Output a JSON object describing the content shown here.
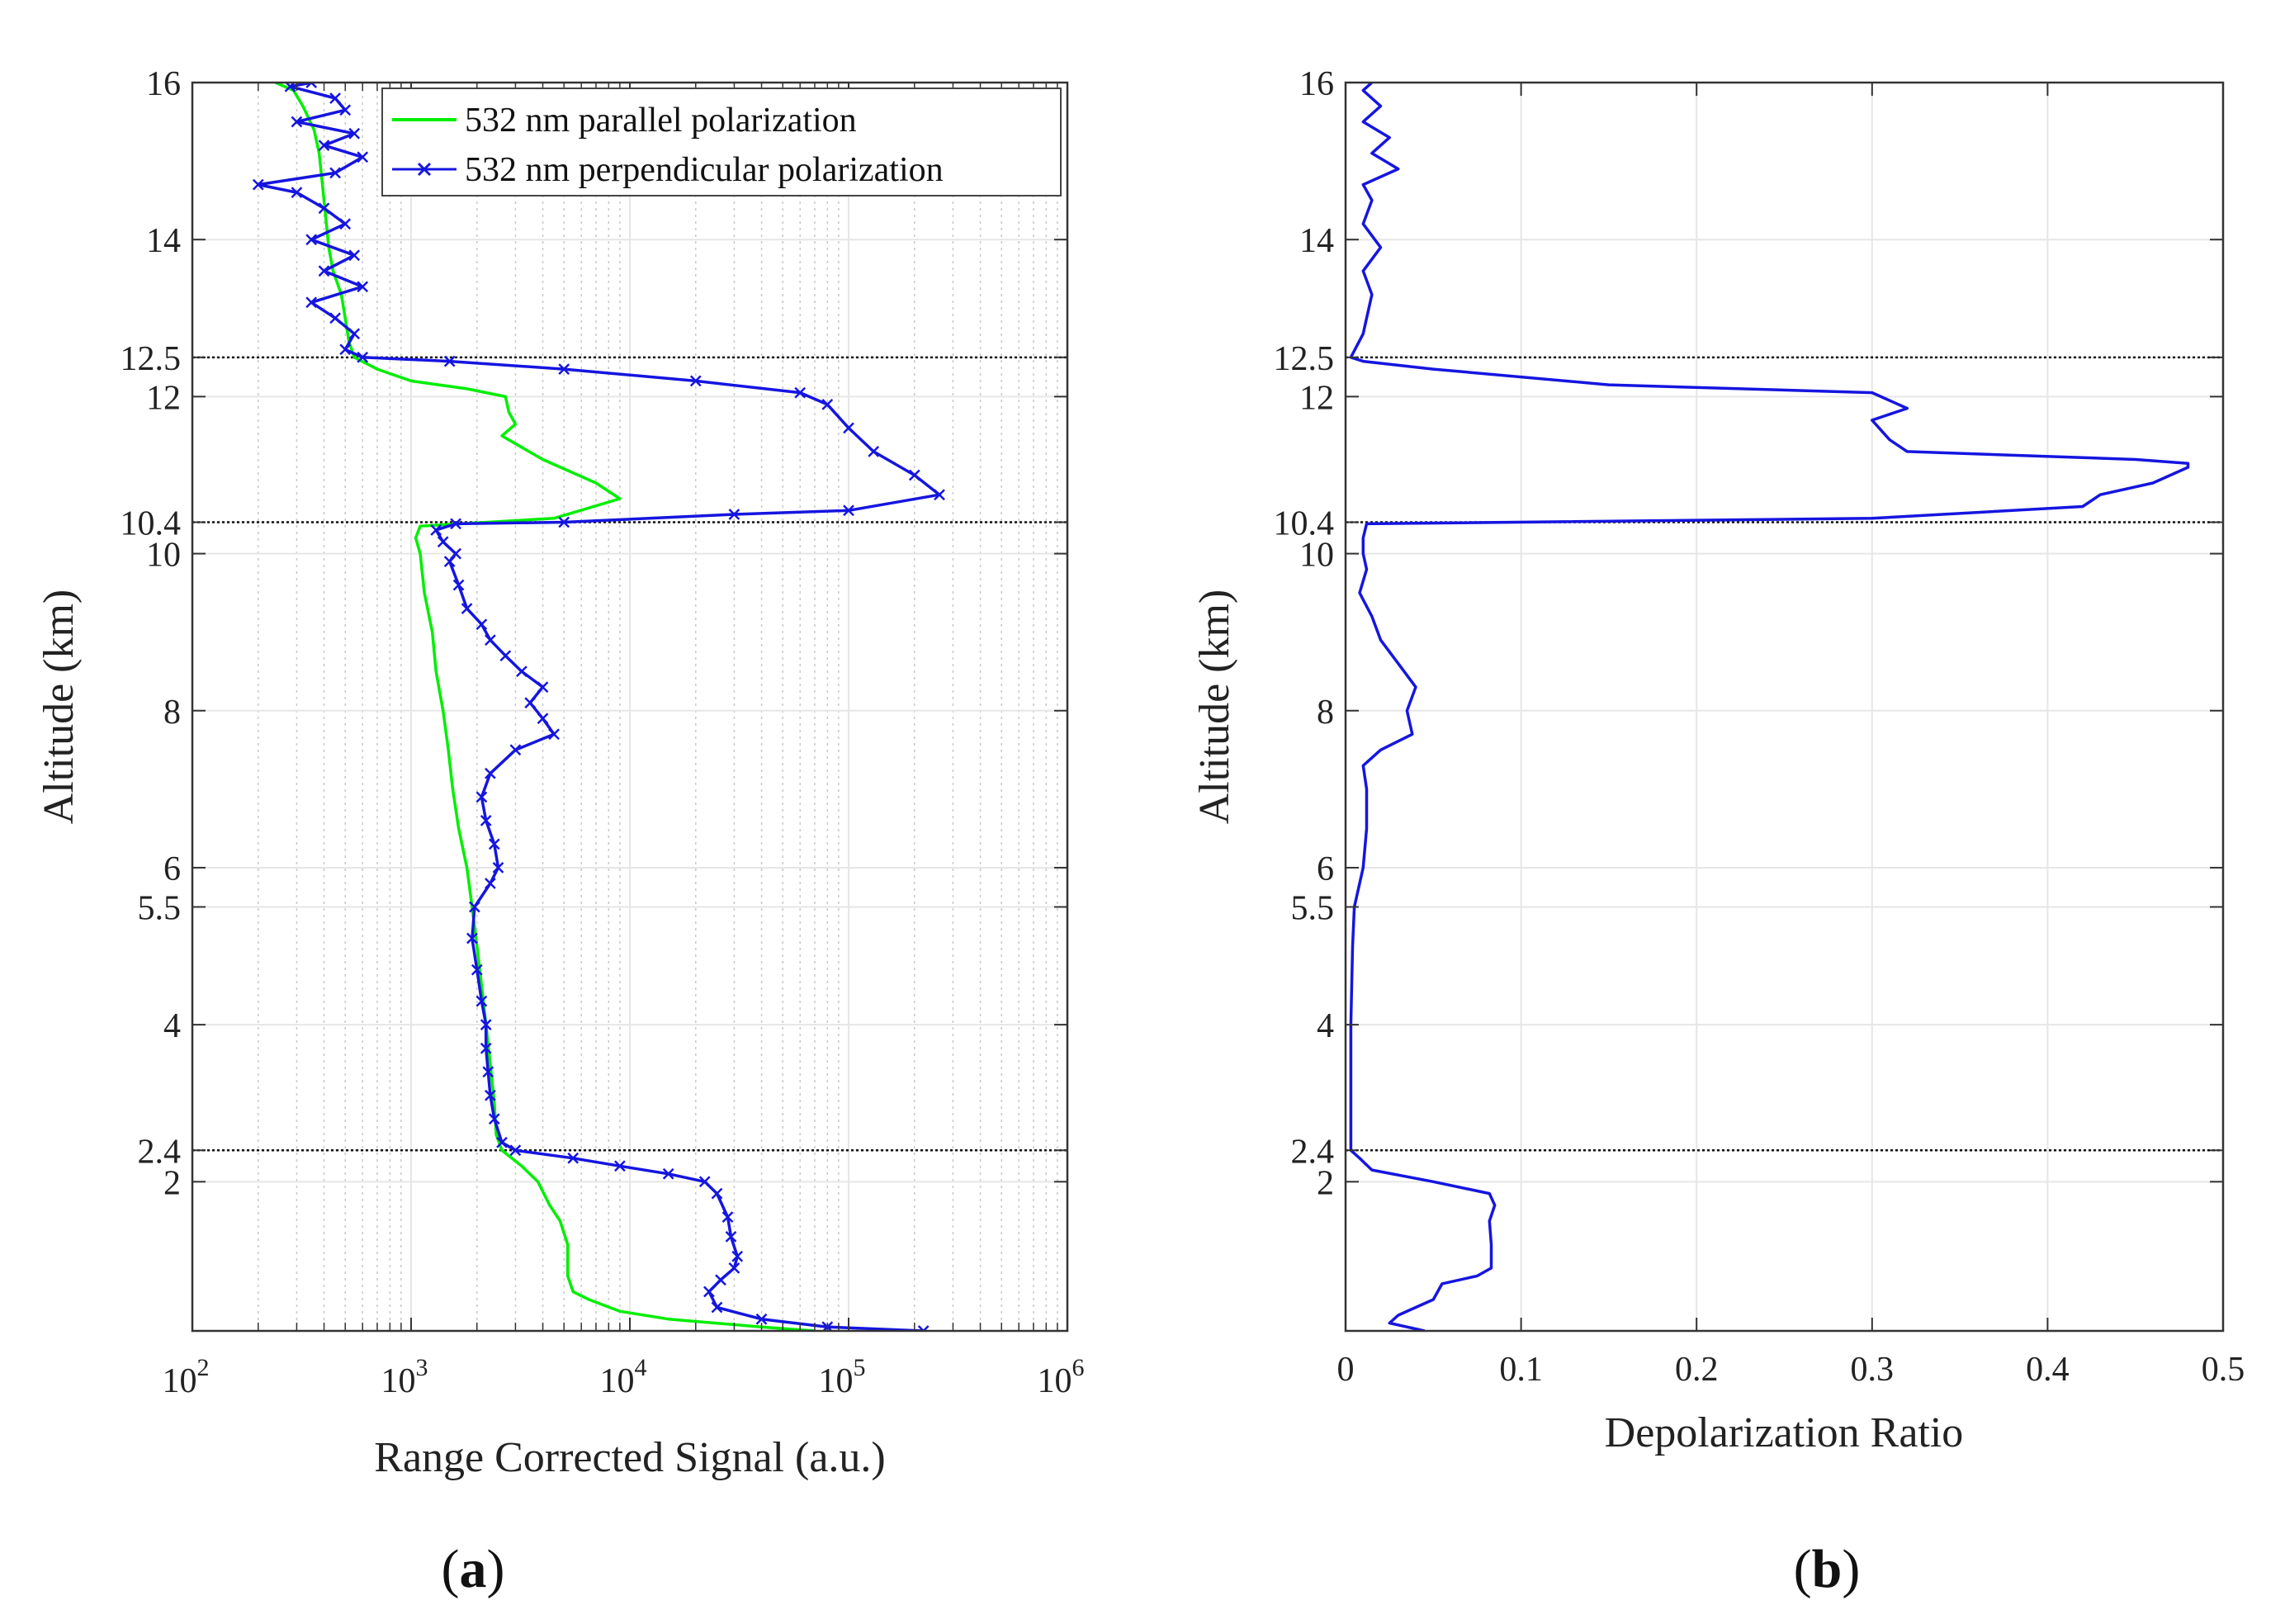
{
  "figure": {
    "panels": [
      {
        "label_open": "(",
        "label_letter": "a",
        "label_close": ")"
      },
      {
        "label_open": "(",
        "label_letter": "b",
        "label_close": ")"
      }
    ]
  },
  "chart_data": [
    {
      "type": "line",
      "panel": "a",
      "xlabel": "Range Corrected Signal (a.u.)",
      "ylabel": "Altitude (km)",
      "xscale": "log",
      "xlim": [
        100,
        1000000
      ],
      "ylim": [
        0.1,
        16
      ],
      "grid": true,
      "minor_grid_x": true,
      "legend_position": "top-right",
      "x_ticks": [
        {
          "value": 100,
          "base": "10",
          "exp": "2"
        },
        {
          "value": 1000,
          "base": "10",
          "exp": "3"
        },
        {
          "value": 10000,
          "base": "10",
          "exp": "4"
        },
        {
          "value": 100000,
          "base": "10",
          "exp": "5"
        },
        {
          "value": 1000000,
          "base": "10",
          "exp": "6"
        }
      ],
      "y_ticks": [
        {
          "value": 16,
          "label": "16"
        },
        {
          "value": 14,
          "label": "14"
        },
        {
          "value": 12.5,
          "label": "12.5"
        },
        {
          "value": 12,
          "label": "12"
        },
        {
          "value": 10.4,
          "label": "10.4"
        },
        {
          "value": 10,
          "label": "10"
        },
        {
          "value": 8,
          "label": "8"
        },
        {
          "value": 6,
          "label": "6"
        },
        {
          "value": 5.5,
          "label": "5.5"
        },
        {
          "value": 4,
          "label": "4"
        },
        {
          "value": 2.4,
          "label": "2.4"
        },
        {
          "value": 2,
          "label": "2"
        }
      ],
      "reference_lines_y": [
        12.5,
        10.4,
        2.4
      ],
      "series": [
        {
          "name": "532 nm parallel polarization",
          "color": "#00ee00",
          "marker": "none",
          "points": [
            [
              70000,
              0.1
            ],
            [
              40000,
              0.15
            ],
            [
              15000,
              0.25
            ],
            [
              9000,
              0.35
            ],
            [
              6500,
              0.5
            ],
            [
              5500,
              0.6
            ],
            [
              5200,
              0.8
            ],
            [
              5200,
              1.2
            ],
            [
              4800,
              1.5
            ],
            [
              4300,
              1.7
            ],
            [
              3800,
              2.0
            ],
            [
              3200,
              2.2
            ],
            [
              2600,
              2.4
            ],
            [
              2450,
              2.6
            ],
            [
              2400,
              3.0
            ],
            [
              2300,
              3.5
            ],
            [
              2200,
              4.0
            ],
            [
              2100,
              4.5
            ],
            [
              2000,
              5.0
            ],
            [
              1900,
              5.5
            ],
            [
              1800,
              6.0
            ],
            [
              1650,
              6.5
            ],
            [
              1550,
              7.0
            ],
            [
              1480,
              7.5
            ],
            [
              1400,
              8.0
            ],
            [
              1300,
              8.5
            ],
            [
              1250,
              9.0
            ],
            [
              1150,
              9.5
            ],
            [
              1100,
              10.0
            ],
            [
              1050,
              10.2
            ],
            [
              1100,
              10.35
            ],
            [
              4500,
              10.45
            ],
            [
              9000,
              10.7
            ],
            [
              7000,
              10.9
            ],
            [
              4000,
              11.2
            ],
            [
              2600,
              11.5
            ],
            [
              3000,
              11.65
            ],
            [
              2800,
              11.8
            ],
            [
              2700,
              12.0
            ],
            [
              1800,
              12.1
            ],
            [
              1000,
              12.2
            ],
            [
              700,
              12.35
            ],
            [
              550,
              12.5
            ],
            [
              520,
              12.7
            ],
            [
              500,
              13.0
            ],
            [
              480,
              13.3
            ],
            [
              440,
              13.6
            ],
            [
              420,
              13.9
            ],
            [
              410,
              14.2
            ],
            [
              400,
              14.5
            ],
            [
              390,
              14.8
            ],
            [
              380,
              15.1
            ],
            [
              360,
              15.4
            ],
            [
              320,
              15.7
            ],
            [
              290,
              15.9
            ],
            [
              240,
              16.0
            ]
          ]
        },
        {
          "name": "532 nm perpendicular polarization",
          "color": "#1515e0",
          "marker": "x",
          "points": [
            [
              220000,
              0.1
            ],
            [
              80000,
              0.15
            ],
            [
              40000,
              0.25
            ],
            [
              25000,
              0.4
            ],
            [
              23000,
              0.6
            ],
            [
              26000,
              0.75
            ],
            [
              30000,
              0.9
            ],
            [
              31000,
              1.05
            ],
            [
              29000,
              1.3
            ],
            [
              28000,
              1.55
            ],
            [
              25000,
              1.85
            ],
            [
              22000,
              2.0
            ],
            [
              15000,
              2.1
            ],
            [
              9000,
              2.2
            ],
            [
              5500,
              2.3
            ],
            [
              3000,
              2.4
            ],
            [
              2600,
              2.5
            ],
            [
              2400,
              2.8
            ],
            [
              2300,
              3.1
            ],
            [
              2250,
              3.4
            ],
            [
              2200,
              3.7
            ],
            [
              2200,
              4.0
            ],
            [
              2100,
              4.3
            ],
            [
              2000,
              4.7
            ],
            [
              1900,
              5.1
            ],
            [
              1950,
              5.5
            ],
            [
              2300,
              5.8
            ],
            [
              2500,
              6.0
            ],
            [
              2400,
              6.3
            ],
            [
              2200,
              6.6
            ],
            [
              2100,
              6.9
            ],
            [
              2300,
              7.2
            ],
            [
              3000,
              7.5
            ],
            [
              4500,
              7.7
            ],
            [
              4000,
              7.9
            ],
            [
              3500,
              8.1
            ],
            [
              4000,
              8.3
            ],
            [
              3200,
              8.5
            ],
            [
              2700,
              8.7
            ],
            [
              2300,
              8.9
            ],
            [
              2100,
              9.1
            ],
            [
              1800,
              9.3
            ],
            [
              1650,
              9.6
            ],
            [
              1500,
              9.9
            ],
            [
              1600,
              10.0
            ],
            [
              1400,
              10.15
            ],
            [
              1300,
              10.3
            ],
            [
              1600,
              10.38
            ],
            [
              5000,
              10.4
            ],
            [
              30000,
              10.5
            ],
            [
              100000,
              10.55
            ],
            [
              260000,
              10.75
            ],
            [
              200000,
              11.0
            ],
            [
              130000,
              11.3
            ],
            [
              100000,
              11.6
            ],
            [
              80000,
              11.9
            ],
            [
              60000,
              12.05
            ],
            [
              20000,
              12.2
            ],
            [
              5000,
              12.35
            ],
            [
              1500,
              12.45
            ],
            [
              600,
              12.5
            ],
            [
              500,
              12.6
            ],
            [
              550,
              12.8
            ],
            [
              450,
              13.0
            ],
            [
              350,
              13.2
            ],
            [
              600,
              13.4
            ],
            [
              400,
              13.6
            ],
            [
              550,
              13.8
            ],
            [
              350,
              14.0
            ],
            [
              500,
              14.2
            ],
            [
              400,
              14.4
            ],
            [
              300,
              14.6
            ],
            [
              200,
              14.7
            ],
            [
              450,
              14.85
            ],
            [
              600,
              15.05
            ],
            [
              400,
              15.2
            ],
            [
              550,
              15.35
            ],
            [
              300,
              15.5
            ],
            [
              500,
              15.65
            ],
            [
              450,
              15.8
            ],
            [
              280,
              15.95
            ],
            [
              350,
              16.0
            ]
          ]
        }
      ]
    },
    {
      "type": "line",
      "panel": "b",
      "xlabel": "Depolarization Ratio",
      "ylabel": "Altitude (km)",
      "xlim": [
        0,
        0.5
      ],
      "ylim": [
        0.1,
        16
      ],
      "grid": true,
      "x_ticks": [
        {
          "value": 0,
          "label": "0"
        },
        {
          "value": 0.1,
          "label": "0.1"
        },
        {
          "value": 0.2,
          "label": "0.2"
        },
        {
          "value": 0.3,
          "label": "0.3"
        },
        {
          "value": 0.4,
          "label": "0.4"
        },
        {
          "value": 0.5,
          "label": "0.5"
        }
      ],
      "y_ticks": [
        {
          "value": 16,
          "label": "16"
        },
        {
          "value": 14,
          "label": "14"
        },
        {
          "value": 12.5,
          "label": "12.5"
        },
        {
          "value": 12,
          "label": "12"
        },
        {
          "value": 10.4,
          "label": "10.4"
        },
        {
          "value": 10,
          "label": "10"
        },
        {
          "value": 8,
          "label": "8"
        },
        {
          "value": 6,
          "label": "6"
        },
        {
          "value": 5.5,
          "label": "5.5"
        },
        {
          "value": 4,
          "label": "4"
        },
        {
          "value": 2.4,
          "label": "2.4"
        },
        {
          "value": 2,
          "label": "2"
        }
      ],
      "reference_lines_y": [
        12.5,
        10.4,
        2.4
      ],
      "series": [
        {
          "color": "#1515e0",
          "marker": "none",
          "points": [
            [
              0.045,
              0.1
            ],
            [
              0.035,
              0.15
            ],
            [
              0.025,
              0.2
            ],
            [
              0.03,
              0.3
            ],
            [
              0.04,
              0.4
            ],
            [
              0.05,
              0.5
            ],
            [
              0.055,
              0.7
            ],
            [
              0.075,
              0.8
            ],
            [
              0.083,
              0.9
            ],
            [
              0.083,
              1.2
            ],
            [
              0.082,
              1.5
            ],
            [
              0.085,
              1.7
            ],
            [
              0.082,
              1.85
            ],
            [
              0.05,
              2.0
            ],
            [
              0.015,
              2.15
            ],
            [
              0.008,
              2.3
            ],
            [
              0.003,
              2.4
            ],
            [
              0.003,
              3.0
            ],
            [
              0.003,
              4.0
            ],
            [
              0.004,
              5.0
            ],
            [
              0.005,
              5.5
            ],
            [
              0.01,
              6.0
            ],
            [
              0.012,
              6.5
            ],
            [
              0.012,
              7.0
            ],
            [
              0.01,
              7.3
            ],
            [
              0.02,
              7.5
            ],
            [
              0.038,
              7.7
            ],
            [
              0.035,
              8.0
            ],
            [
              0.04,
              8.3
            ],
            [
              0.03,
              8.6
            ],
            [
              0.02,
              8.9
            ],
            [
              0.015,
              9.2
            ],
            [
              0.008,
              9.5
            ],
            [
              0.012,
              9.8
            ],
            [
              0.01,
              10.0
            ],
            [
              0.01,
              10.2
            ],
            [
              0.012,
              10.38
            ],
            [
              0.3,
              10.45
            ],
            [
              0.42,
              10.6
            ],
            [
              0.43,
              10.75
            ],
            [
              0.46,
              10.9
            ],
            [
              0.48,
              11.1
            ],
            [
              0.48,
              11.15
            ],
            [
              0.45,
              11.2
            ],
            [
              0.32,
              11.3
            ],
            [
              0.31,
              11.45
            ],
            [
              0.3,
              11.7
            ],
            [
              0.32,
              11.85
            ],
            [
              0.3,
              12.05
            ],
            [
              0.15,
              12.15
            ],
            [
              0.05,
              12.35
            ],
            [
              0.01,
              12.45
            ],
            [
              0.003,
              12.5
            ],
            [
              0.01,
              12.8
            ],
            [
              0.012,
              13.0
            ],
            [
              0.015,
              13.3
            ],
            [
              0.01,
              13.6
            ],
            [
              0.02,
              13.9
            ],
            [
              0.01,
              14.2
            ],
            [
              0.015,
              14.5
            ],
            [
              0.01,
              14.7
            ],
            [
              0.03,
              14.9
            ],
            [
              0.015,
              15.1
            ],
            [
              0.025,
              15.3
            ],
            [
              0.01,
              15.5
            ],
            [
              0.02,
              15.7
            ],
            [
              0.01,
              15.9
            ],
            [
              0.015,
              16.0
            ]
          ]
        }
      ]
    }
  ]
}
